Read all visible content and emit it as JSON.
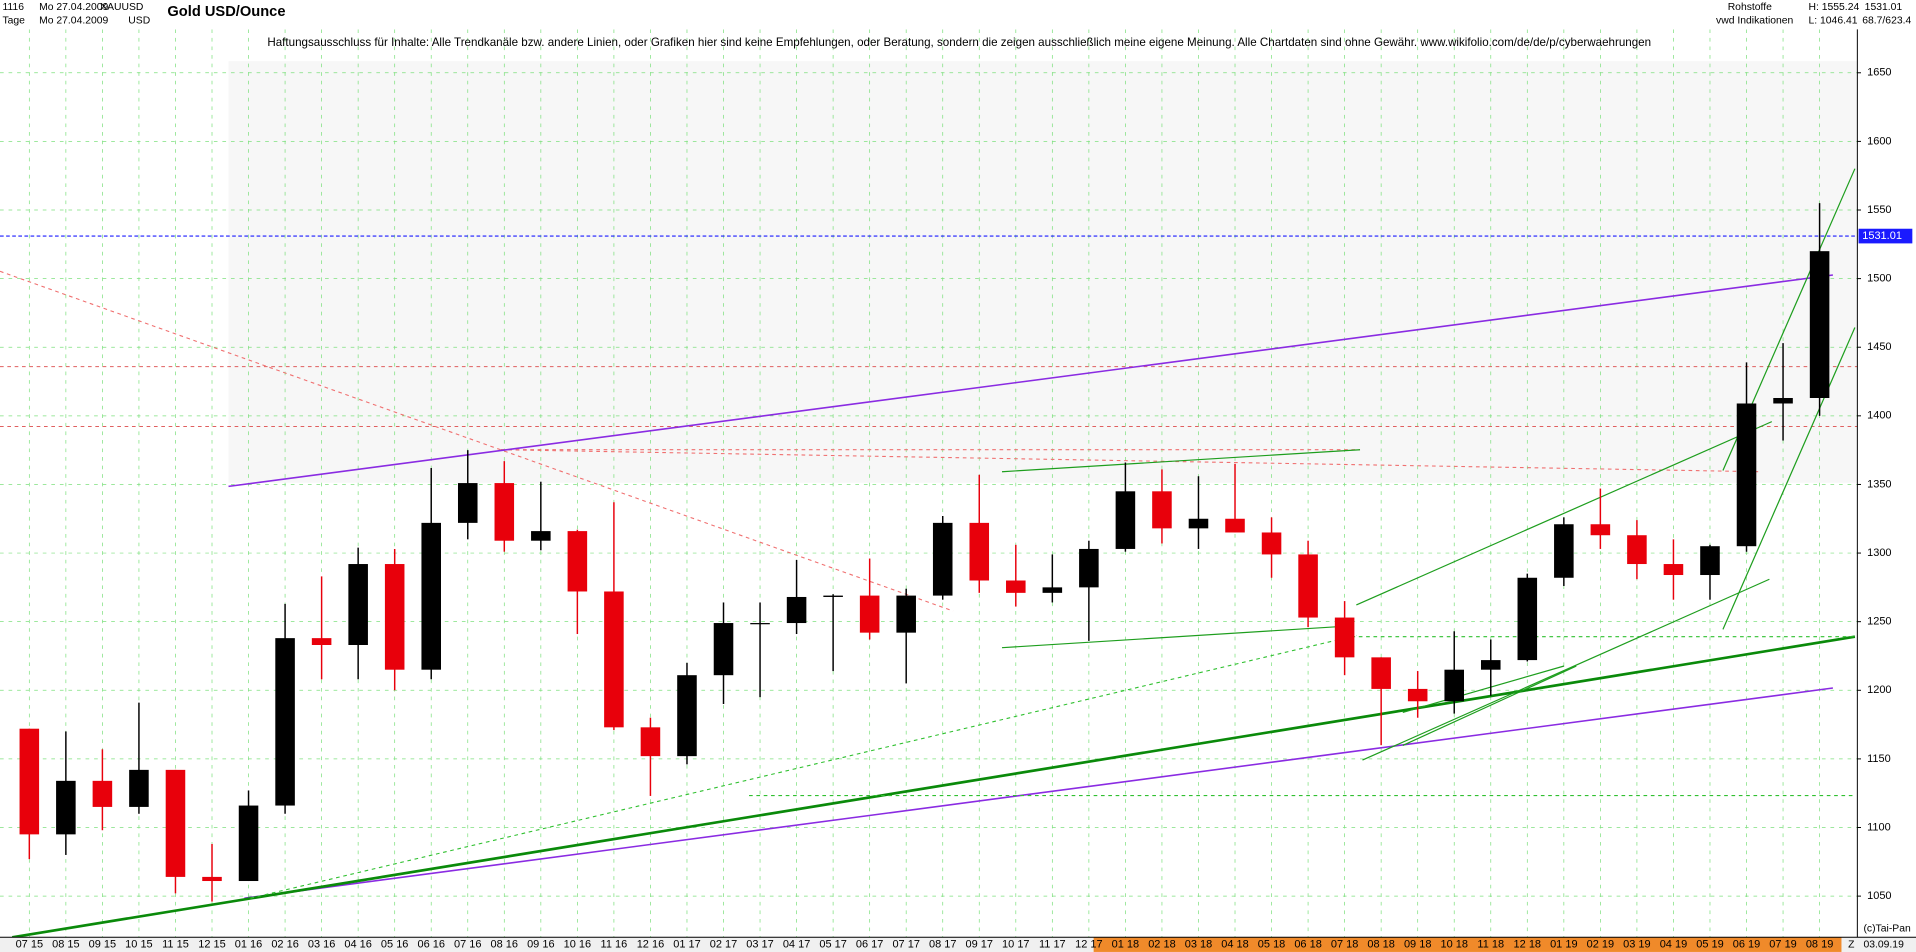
{
  "header": {
    "period_count": "1116",
    "date_top": "Mo 27.04.2009",
    "symbol": "XAUUSD",
    "interval": "Tage",
    "date_bottom": "Mo 27.04.2009",
    "currency": "USD",
    "sector": "Rohstoffe",
    "source": "vwd Indikationen",
    "high": "H: 1555.24",
    "low": "L: 1046.41",
    "last": "1531.01",
    "ratio": "68.7/623.4",
    "disclaimer": "Haftungsausschluss für Inhalte: Alle Trendkanäle bzw. andere Linien, oder Grafiken hier sind keine Empfehlungen, oder Beratung, sondern die zeigen ausschließlich meine eigene Meinung. Alle Chartdaten sind ohne Gewähr.  www.wikifolio.com/de/de/p/cyberwaehrungen"
  },
  "footer": {
    "copyright": "(c)Tai-Pan",
    "date": "03.09.19",
    "end_marker": "Z"
  },
  "chart_data": {
    "type": "candlestick",
    "title": "Gold USD/Ounce",
    "categories": [
      "07 15",
      "08 15",
      "09 15",
      "10 15",
      "11 15",
      "12 15",
      "01 16",
      "02 16",
      "03 16",
      "04 16",
      "05 16",
      "06 16",
      "07 16",
      "08 16",
      "09 16",
      "10 16",
      "11 16",
      "12 16",
      "01 17",
      "02 17",
      "03 17",
      "04 17",
      "05 17",
      "06 17",
      "07 17",
      "08 17",
      "09 17",
      "10 17",
      "11 17",
      "12 17",
      "01 18",
      "02 18",
      "03 18",
      "04 18",
      "05 18",
      "06 18",
      "07 18",
      "08 18",
      "09 18",
      "10 18",
      "11 18",
      "12 18",
      "01 19",
      "02 19",
      "03 19",
      "04 19",
      "05 19",
      "06 19",
      "07 19",
      "08 19"
    ],
    "open": [
      1172,
      1095,
      1134,
      1115,
      1142,
      1064,
      1061,
      1116,
      1238,
      1233,
      1292,
      1215,
      1322,
      1351,
      1309,
      1316,
      1272,
      1173,
      1152,
      1211,
      1249,
      1249,
      1268,
      1269,
      1242,
      1269,
      1322,
      1280,
      1271,
      1275,
      1303,
      1345,
      1318,
      1325,
      1315,
      1299,
      1253,
      1224,
      1201,
      1192,
      1215,
      1222,
      1282,
      1321,
      1313,
      1292,
      1284,
      1305,
      1409,
      1413
    ],
    "high": [
      1172,
      1170,
      1157,
      1191,
      1142,
      1088,
      1127,
      1263,
      1283,
      1304,
      1303,
      1362,
      1375,
      1367,
      1352,
      1317,
      1337,
      1180,
      1220,
      1264,
      1264,
      1295,
      1270,
      1296,
      1274,
      1327,
      1357,
      1306,
      1299,
      1309,
      1366,
      1361,
      1356,
      1365,
      1326,
      1309,
      1265,
      1224,
      1214,
      1243,
      1237,
      1285,
      1326,
      1347,
      1324,
      1310,
      1306,
      1439,
      1453,
      1555
    ],
    "low": [
      1077,
      1080,
      1098,
      1110,
      1052,
      1046,
      1061,
      1110,
      1208,
      1208,
      1200,
      1208,
      1310,
      1301,
      1302,
      1241,
      1171,
      1123,
      1146,
      1190,
      1195,
      1241,
      1214,
      1237,
      1205,
      1266,
      1271,
      1261,
      1264,
      1236,
      1301,
      1307,
      1303,
      1315,
      1282,
      1246,
      1211,
      1160,
      1180,
      1183,
      1196,
      1221,
      1276,
      1303,
      1281,
      1266,
      1266,
      1301,
      1382,
      1400
    ],
    "close": [
      1095,
      1134,
      1115,
      1142,
      1064,
      1061,
      1116,
      1238,
      1233,
      1292,
      1215,
      1322,
      1351,
      1309,
      1316,
      1272,
      1173,
      1152,
      1211,
      1249,
      1249,
      1268,
      1269,
      1242,
      1269,
      1322,
      1280,
      1271,
      1275,
      1303,
      1345,
      1318,
      1325,
      1315,
      1299,
      1253,
      1224,
      1201,
      1192,
      1215,
      1222,
      1282,
      1321,
      1313,
      1292,
      1284,
      1305,
      1409,
      1413,
      1520
    ],
    "up_color": "#000000",
    "down_color": "#e8000b",
    "last": 1531.01,
    "last_color": "#1a1aff",
    "ylim": [
      1020,
      1703
    ],
    "yticks": [
      1050,
      1100,
      1150,
      1200,
      1250,
      1300,
      1350,
      1400,
      1450,
      1500,
      1550,
      1600,
      1650
    ],
    "grid": true
  }
}
